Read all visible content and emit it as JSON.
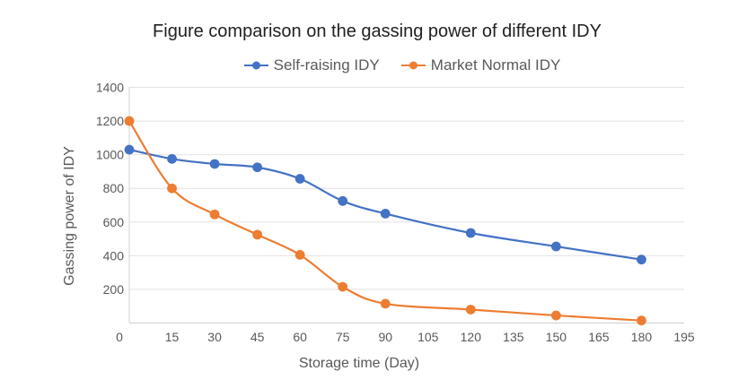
{
  "chart_data": {
    "type": "line",
    "title": "Figure comparison on the gassing power of different IDY",
    "xlabel": "Storage time (Day)",
    "ylabel": "Gassing power of IDY",
    "x": [
      0,
      15,
      30,
      45,
      60,
      75,
      90,
      120,
      150,
      180
    ],
    "series": [
      {
        "name": "Self-raising IDY",
        "color": "#4472C4",
        "values": [
          1030,
          975,
          945,
          925,
          857,
          725,
          650,
          535,
          455,
          377
        ]
      },
      {
        "name": "Market Normal IDY",
        "color": "#ED7D31",
        "values": [
          1200,
          800,
          645,
          525,
          405,
          215,
          115,
          80,
          45,
          15
        ]
      }
    ],
    "xlim": [
      0,
      195
    ],
    "ylim": [
      0,
      1400
    ],
    "x_ticks": [
      0,
      15,
      30,
      45,
      60,
      75,
      90,
      105,
      120,
      135,
      150,
      165,
      180,
      195
    ],
    "y_ticks": [
      200,
      400,
      600,
      800,
      1000,
      1200,
      1400
    ],
    "grid": "horizontal-only",
    "gridline_color": "#e2e2e2",
    "axis_line_color": "#d0d0d0",
    "line_style": "smooth",
    "marker": "circle",
    "legend_position": "top-center"
  }
}
